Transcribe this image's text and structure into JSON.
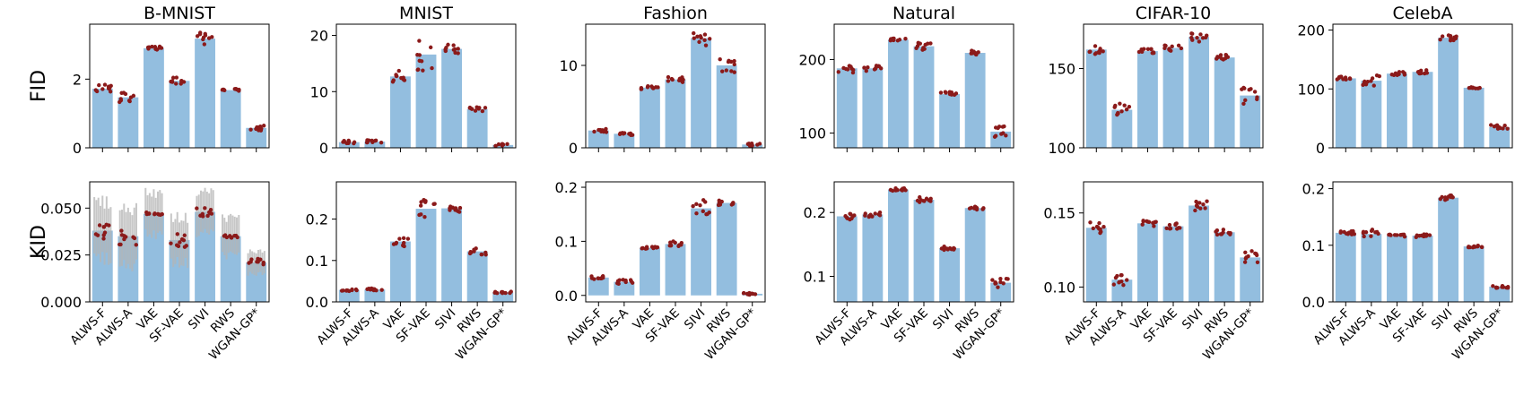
{
  "row_labels": [
    "FID",
    "KID"
  ],
  "colors": {
    "bar": "#93bedf",
    "dot": "#8b1a1a",
    "err": "#b5b5b5",
    "axis": "#000000"
  },
  "chart_data": [
    {
      "type": "bar",
      "row": 0,
      "col": 0,
      "title": "B-MNIST",
      "ylabel": "FID",
      "categories": [
        "ALWS-F",
        "ALWS-A",
        "VAE",
        "SF-VAE",
        "SIVI",
        "RWS",
        "WGAN-GP*"
      ],
      "values": [
        1.72,
        1.47,
        2.9,
        1.95,
        3.18,
        1.68,
        0.58
      ],
      "spread": [
        0.12,
        0.18,
        0.05,
        0.1,
        0.2,
        0.05,
        0.08
      ],
      "ylim": [
        0,
        3.6
      ],
      "yticks": [
        0,
        2
      ],
      "yticklabels": [
        "0",
        "2"
      ]
    },
    {
      "type": "bar",
      "row": 0,
      "col": 1,
      "title": "MNIST",
      "ylabel": "",
      "categories": [
        "ALWS-F",
        "ALWS-A",
        "VAE",
        "SF-VAE",
        "SIVI",
        "RWS",
        "WGAN-GP*"
      ],
      "values": [
        1.0,
        1.1,
        12.7,
        16.6,
        17.6,
        6.9,
        0.5
      ],
      "spread": [
        0.3,
        0.3,
        1.0,
        3.0,
        1.0,
        0.4,
        0.2
      ],
      "ylim": [
        0,
        22
      ],
      "yticks": [
        0,
        10,
        20
      ],
      "yticklabels": [
        "0",
        "10",
        "20"
      ]
    },
    {
      "type": "bar",
      "row": 0,
      "col": 2,
      "title": "Fashion",
      "ylabel": "",
      "categories": [
        "ALWS-F",
        "ALWS-A",
        "VAE",
        "SF-VAE",
        "SIVI",
        "RWS",
        "WGAN-GP*"
      ],
      "values": [
        2.1,
        1.7,
        7.3,
        8.3,
        13.3,
        10.0,
        0.4
      ],
      "spread": [
        0.2,
        0.2,
        0.2,
        0.4,
        1.0,
        1.0,
        0.15
      ],
      "ylim": [
        0,
        15
      ],
      "yticks": [
        0,
        10
      ],
      "yticklabels": [
        "0",
        "10"
      ]
    },
    {
      "type": "bar",
      "row": 0,
      "col": 3,
      "title": "Natural",
      "ylabel": "",
      "categories": [
        "ALWS-F",
        "ALWS-A",
        "VAE",
        "SF-VAE",
        "SIVI",
        "RWS",
        "WGAN-GP*"
      ],
      "values": [
        188,
        188,
        227,
        218,
        153,
        209,
        102
      ],
      "spread": [
        6,
        6,
        2,
        5,
        3,
        3,
        8
      ],
      "ylim": [
        80,
        248
      ],
      "yticks": [
        100,
        200
      ],
      "yticklabels": [
        "100",
        "200"
      ]
    },
    {
      "type": "bar",
      "row": 0,
      "col": 4,
      "title": "CIFAR-10",
      "ylabel": "",
      "categories": [
        "ALWS-F",
        "ALWS-A",
        "VAE",
        "SF-VAE",
        "SIVI",
        "RWS",
        "WGAN-GP*"
      ],
      "values": [
        162,
        124,
        161,
        163,
        170,
        157,
        133
      ],
      "spread": [
        3,
        4,
        2,
        2,
        3,
        2,
        6
      ],
      "ylim": [
        100,
        178
      ],
      "yticks": [
        100,
        150
      ],
      "yticklabels": [
        "100",
        "150"
      ]
    },
    {
      "type": "bar",
      "row": 0,
      "col": 5,
      "title": "CelebA",
      "ylabel": "",
      "categories": [
        "ALWS-F",
        "ALWS-A",
        "VAE",
        "SF-VAE",
        "SIVI",
        "RWS",
        "WGAN-GP*"
      ],
      "values": [
        118,
        114,
        126,
        129,
        187,
        102,
        35
      ],
      "spread": [
        3,
        10,
        3,
        3,
        5,
        2,
        4
      ],
      "ylim": [
        0,
        210
      ],
      "yticks": [
        0,
        100,
        200
      ],
      "yticklabels": [
        "0",
        "100",
        "200"
      ]
    },
    {
      "type": "bar",
      "row": 1,
      "col": 0,
      "title": "",
      "ylabel": "KID",
      "categories": [
        "ALWS-F",
        "ALWS-A",
        "VAE",
        "SF-VAE",
        "SIVI",
        "RWS",
        "WGAN-GP*"
      ],
      "values": [
        0.038,
        0.035,
        0.047,
        0.033,
        0.048,
        0.035,
        0.021
      ],
      "spread": [
        0.005,
        0.005,
        0.001,
        0.004,
        0.003,
        0.001,
        0.002
      ],
      "error_half": [
        0.015,
        0.015,
        0.011,
        0.012,
        0.011,
        0.01,
        0.006
      ],
      "ylim": [
        0,
        0.064
      ],
      "yticks": [
        0,
        0.025,
        0.05
      ],
      "yticklabels": [
        "0.000",
        "0.025",
        "0.050"
      ]
    },
    {
      "type": "bar",
      "row": 1,
      "col": 1,
      "title": "",
      "ylabel": "",
      "categories": [
        "ALWS-F",
        "ALWS-A",
        "VAE",
        "SF-VAE",
        "SIVI",
        "RWS",
        "WGAN-GP*"
      ],
      "values": [
        0.029,
        0.03,
        0.146,
        0.225,
        0.226,
        0.122,
        0.023
      ],
      "spread": [
        0.003,
        0.003,
        0.012,
        0.03,
        0.01,
        0.008,
        0.002
      ],
      "ylim": [
        0,
        0.29
      ],
      "yticks": [
        0,
        0.1,
        0.2
      ],
      "yticklabels": [
        "0.0",
        "0.1",
        "0.2"
      ]
    },
    {
      "type": "bar",
      "row": 1,
      "col": 2,
      "title": "",
      "ylabel": "",
      "categories": [
        "ALWS-F",
        "ALWS-A",
        "VAE",
        "SF-VAE",
        "SIVI",
        "RWS",
        "WGAN-GP*"
      ],
      "values": [
        0.033,
        0.025,
        0.088,
        0.095,
        0.161,
        0.171,
        0.003
      ],
      "spread": [
        0.003,
        0.004,
        0.002,
        0.006,
        0.02,
        0.005,
        0.002
      ],
      "ylim": [
        -0.012,
        0.21
      ],
      "yticks": [
        0,
        0.1,
        0.2
      ],
      "yticklabels": [
        "0.0",
        "0.1",
        "0.2"
      ]
    },
    {
      "type": "bar",
      "row": 1,
      "col": 3,
      "title": "",
      "ylabel": "",
      "categories": [
        "ALWS-F",
        "ALWS-A",
        "VAE",
        "SF-VAE",
        "SIVI",
        "RWS",
        "WGAN-GP*"
      ],
      "values": [
        0.194,
        0.197,
        0.236,
        0.22,
        0.144,
        0.207,
        0.09
      ],
      "spread": [
        0.005,
        0.005,
        0.002,
        0.004,
        0.003,
        0.003,
        0.008
      ],
      "ylim": [
        0.06,
        0.248
      ],
      "yticks": [
        0.1,
        0.2
      ],
      "yticklabels": [
        "0.1",
        "0.2"
      ]
    },
    {
      "type": "bar",
      "row": 1,
      "col": 4,
      "title": "",
      "ylabel": "",
      "categories": [
        "ALWS-F",
        "ALWS-A",
        "VAE",
        "SF-VAE",
        "SIVI",
        "RWS",
        "WGAN-GP*"
      ],
      "values": [
        0.14,
        0.105,
        0.143,
        0.141,
        0.155,
        0.137,
        0.12
      ],
      "spread": [
        0.004,
        0.004,
        0.002,
        0.002,
        0.004,
        0.002,
        0.006
      ],
      "ylim": [
        0.09,
        0.171
      ],
      "yticks": [
        0.1,
        0.15
      ],
      "yticklabels": [
        "0.10",
        "0.15"
      ]
    },
    {
      "type": "bar",
      "row": 1,
      "col": 5,
      "title": "",
      "ylabel": "",
      "categories": [
        "ALWS-F",
        "ALWS-A",
        "VAE",
        "SF-VAE",
        "SIVI",
        "RWS",
        "WGAN-GP*"
      ],
      "values": [
        0.122,
        0.12,
        0.117,
        0.117,
        0.184,
        0.098,
        0.027
      ],
      "spread": [
        0.003,
        0.008,
        0.002,
        0.003,
        0.004,
        0.002,
        0.003
      ],
      "ylim": [
        0,
        0.212
      ],
      "yticks": [
        0,
        0.1,
        0.2
      ],
      "yticklabels": [
        "0.0",
        "0.1",
        "0.2"
      ]
    }
  ]
}
